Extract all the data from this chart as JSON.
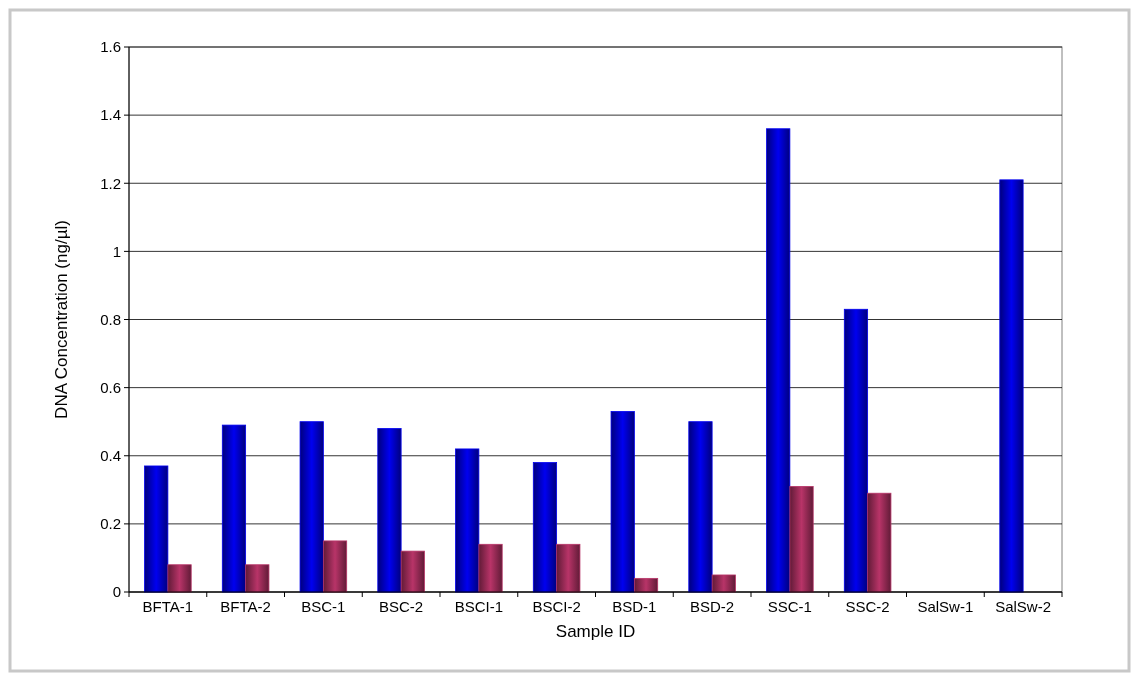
{
  "chart_data": {
    "type": "bar",
    "xlabel": "Sample ID",
    "ylabel": "DNA Concentration (ng/µl)",
    "categories": [
      "BFTA-1",
      "BFTA-2",
      "BSC-1",
      "BSC-2",
      "BSCI-1",
      "BSCI-2",
      "BSD-1",
      "BSD-2",
      "SSC-1",
      "SSC-2",
      "SalSw-1",
      "SalSw-2"
    ],
    "series": [
      {
        "color": "#0000f0",
        "values": [
          0.37,
          0.49,
          0.5,
          0.48,
          0.42,
          0.38,
          0.53,
          0.5,
          1.36,
          0.83,
          null,
          1.21
        ]
      },
      {
        "color": "#b83468",
        "values": [
          0.08,
          0.08,
          0.15,
          0.12,
          0.14,
          0.14,
          0.04,
          0.05,
          0.31,
          0.29,
          null,
          null
        ]
      }
    ],
    "ylim": [
      0,
      1.6
    ],
    "yticks": [
      0,
      0.2,
      0.4,
      0.6,
      0.8,
      1,
      1.2,
      1.4,
      1.6
    ],
    "grid": "y"
  }
}
